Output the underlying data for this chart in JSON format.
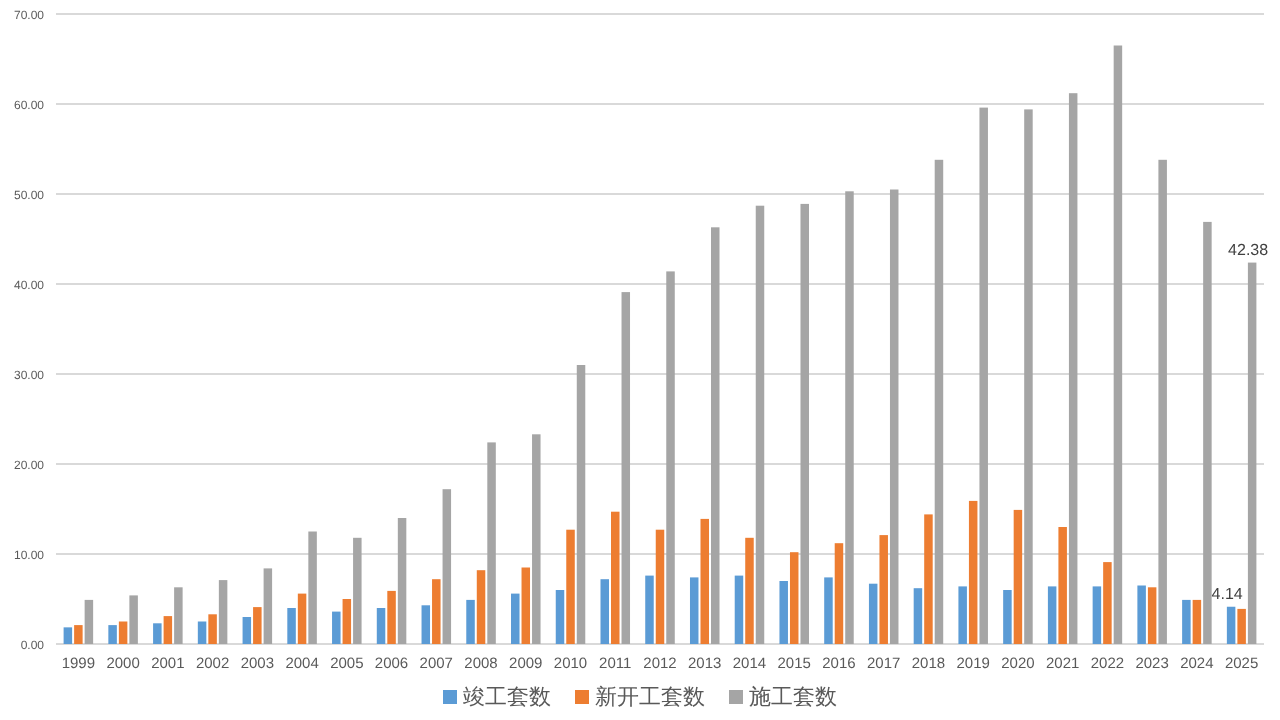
{
  "chart_data": {
    "type": "bar",
    "categories": [
      "1999",
      "2000",
      "2001",
      "2002",
      "2003",
      "2004",
      "2005",
      "2006",
      "2007",
      "2008",
      "2009",
      "2010",
      "2011",
      "2012",
      "2013",
      "2014",
      "2015",
      "2016",
      "2017",
      "2018",
      "2019",
      "2020",
      "2021",
      "2022",
      "2023",
      "2024",
      "2025"
    ],
    "series": [
      {
        "name": "竣工套数",
        "color": "#5b9bd5",
        "values": [
          1.85,
          2.1,
          2.3,
          2.5,
          3.0,
          4.0,
          3.6,
          4.0,
          4.3,
          4.9,
          5.6,
          6.0,
          7.2,
          7.6,
          7.4,
          7.6,
          7.0,
          7.4,
          6.7,
          6.2,
          6.4,
          6.0,
          6.4,
          6.4,
          6.5,
          4.9,
          4.14
        ],
        "value_labels": [
          null,
          null,
          null,
          null,
          null,
          null,
          null,
          null,
          null,
          null,
          null,
          null,
          null,
          null,
          null,
          null,
          null,
          null,
          null,
          null,
          null,
          null,
          null,
          null,
          null,
          null,
          "4.14"
        ]
      },
      {
        "name": "新开工套数",
        "color": "#ed7d31",
        "values": [
          2.1,
          2.5,
          3.1,
          3.3,
          4.1,
          5.6,
          5.0,
          5.9,
          7.2,
          8.2,
          8.5,
          12.7,
          14.7,
          12.7,
          13.9,
          11.8,
          10.2,
          11.2,
          12.1,
          14.4,
          15.9,
          14.9,
          13.0,
          9.1,
          6.3,
          4.9,
          3.9
        ]
      },
      {
        "name": "施工套数",
        "color": "#a5a5a5",
        "values": [
          4.9,
          5.4,
          6.3,
          7.1,
          8.4,
          12.5,
          11.8,
          14.0,
          17.2,
          22.4,
          23.3,
          31.0,
          39.1,
          41.4,
          46.3,
          48.7,
          48.9,
          50.3,
          50.5,
          53.8,
          59.6,
          59.4,
          61.2,
          66.5,
          53.8,
          46.9,
          42.38
        ],
        "value_labels": [
          null,
          null,
          null,
          null,
          null,
          null,
          null,
          null,
          null,
          null,
          null,
          null,
          null,
          null,
          null,
          null,
          null,
          null,
          null,
          null,
          null,
          null,
          null,
          null,
          null,
          null,
          "42.38"
        ]
      }
    ],
    "ylim": [
      0,
      70
    ],
    "yticks": [
      {
        "value": 0,
        "label": "0.00"
      },
      {
        "value": 10,
        "label": "10.00"
      },
      {
        "value": 20,
        "label": "20.00"
      },
      {
        "value": 30,
        "label": "30.00"
      },
      {
        "value": 40,
        "label": "40.00"
      },
      {
        "value": 50,
        "label": "50.00"
      },
      {
        "value": 60,
        "label": "60.00"
      },
      {
        "value": 70,
        "label": "70.00"
      }
    ],
    "grid": "y",
    "legend": "bottom"
  }
}
